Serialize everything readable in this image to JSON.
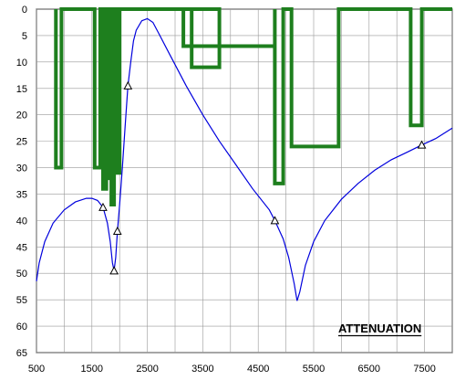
{
  "chart_data": {
    "type": "line",
    "title": "ATTENUATION",
    "xlabel": "",
    "ylabel": "",
    "xlim": [
      500,
      8000
    ],
    "ylim": [
      0,
      65
    ],
    "y_inverted": true,
    "grid": true,
    "x_ticks": [
      "500",
      "1500",
      "2500",
      "3500",
      "4500",
      "5500",
      "6500",
      "7500"
    ],
    "y_ticks": [
      "0",
      "5",
      "10",
      "15",
      "20",
      "25",
      "30",
      "35",
      "40",
      "45",
      "50",
      "55",
      "60",
      "65"
    ],
    "colors": {
      "mask": "#1e7f1e",
      "response": "#0000dd",
      "grid": "#999999"
    },
    "series": [
      {
        "style": "step",
        "color": "#1e7f1e",
        "points": [
          [
            850,
            0
          ],
          [
            850,
            30
          ],
          [
            950,
            30
          ],
          [
            950,
            0
          ],
          [
            1550,
            0
          ],
          [
            1550,
            30
          ],
          [
            1650,
            30
          ],
          [
            1650,
            0
          ],
          [
            1700,
            0
          ],
          [
            1700,
            34
          ],
          [
            1760,
            34
          ],
          [
            1760,
            0
          ],
          [
            1800,
            0
          ],
          [
            1800,
            32
          ],
          [
            1840,
            32
          ],
          [
            1840,
            0
          ],
          [
            1850,
            0
          ],
          [
            1850,
            37
          ],
          [
            1900,
            37
          ],
          [
            1900,
            0
          ],
          [
            1950,
            0
          ],
          [
            1950,
            31
          ],
          [
            2000,
            31
          ],
          [
            2000,
            0
          ],
          [
            3150,
            0
          ],
          [
            3150,
            7
          ],
          [
            3300,
            7
          ],
          [
            3300,
            0
          ],
          [
            3300,
            0
          ],
          [
            3300,
            11
          ],
          [
            3800,
            11
          ],
          [
            3800,
            0
          ],
          [
            3150,
            0
          ],
          [
            3150,
            7
          ],
          [
            4800,
            7
          ],
          [
            4800,
            0
          ],
          [
            4800,
            0
          ],
          [
            4800,
            33
          ],
          [
            4950,
            33
          ],
          [
            4950,
            0
          ],
          [
            5100,
            0
          ],
          [
            5100,
            26
          ],
          [
            5950,
            26
          ],
          [
            5950,
            0
          ],
          [
            7250,
            0
          ],
          [
            7250,
            22
          ],
          [
            7450,
            22
          ],
          [
            7450,
            0
          ],
          [
            7450,
            0
          ],
          [
            8000,
            0
          ]
        ]
      },
      {
        "style": "line",
        "color": "#0000dd",
        "points": [
          [
            500,
            51.5
          ],
          [
            550,
            48
          ],
          [
            650,
            44
          ],
          [
            800,
            40.5
          ],
          [
            1000,
            38
          ],
          [
            1200,
            36.5
          ],
          [
            1400,
            35.8
          ],
          [
            1500,
            35.8
          ],
          [
            1600,
            36.2
          ],
          [
            1700,
            37.5
          ],
          [
            1780,
            40.5
          ],
          [
            1830,
            44
          ],
          [
            1870,
            48
          ],
          [
            1900,
            49.5
          ],
          [
            1930,
            47
          ],
          [
            1960,
            42
          ],
          [
            2000,
            37
          ],
          [
            2050,
            30
          ],
          [
            2100,
            22
          ],
          [
            2150,
            14.5
          ],
          [
            2200,
            10
          ],
          [
            2250,
            6
          ],
          [
            2300,
            4
          ],
          [
            2400,
            2.2
          ],
          [
            2500,
            1.8
          ],
          [
            2600,
            2.5
          ],
          [
            2700,
            4.5
          ],
          [
            2900,
            8.5
          ],
          [
            3200,
            14.5
          ],
          [
            3500,
            20
          ],
          [
            3800,
            25
          ],
          [
            4100,
            29.5
          ],
          [
            4400,
            34
          ],
          [
            4700,
            38
          ],
          [
            4800,
            40
          ],
          [
            4950,
            43.5
          ],
          [
            5050,
            47
          ],
          [
            5150,
            52
          ],
          [
            5200,
            55.2
          ],
          [
            5250,
            53.5
          ],
          [
            5350,
            48.5
          ],
          [
            5500,
            44
          ],
          [
            5700,
            40
          ],
          [
            6000,
            36
          ],
          [
            6300,
            33
          ],
          [
            6600,
            30.5
          ],
          [
            6900,
            28.5
          ],
          [
            7200,
            27
          ],
          [
            7450,
            25.7
          ],
          [
            7700,
            24.5
          ],
          [
            8000,
            22.5
          ]
        ]
      }
    ],
    "markers": [
      [
        1700,
        37.5
      ],
      [
        1900,
        49.5
      ],
      [
        1960,
        42
      ],
      [
        2150,
        14.5
      ],
      [
        4800,
        40
      ],
      [
        7450,
        25.7
      ]
    ]
  }
}
